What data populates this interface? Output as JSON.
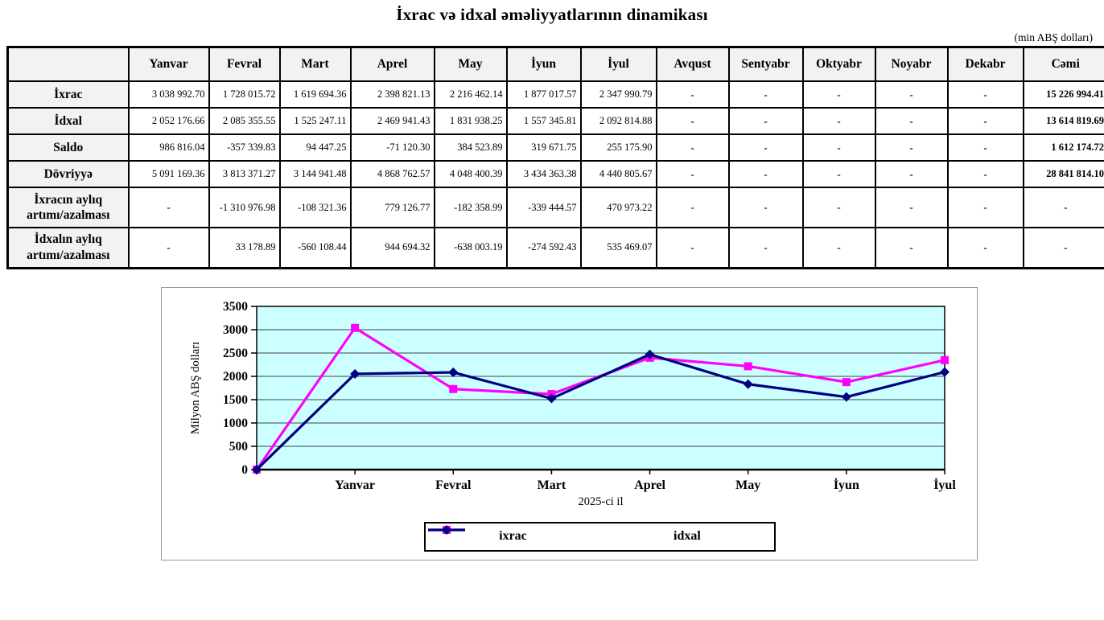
{
  "page": {
    "title": "İxrac və idxal əməliyyatlarının dinamikası",
    "unit_note": "(min ABŞ dolları)"
  },
  "table": {
    "columns": [
      "",
      "Yanvar",
      "Fevral",
      "Mart",
      "Aprel",
      "May",
      "İyun",
      "İyul",
      "Avqust",
      "Sentyabr",
      "Oktyabr",
      "Noyabr",
      "Dekabr",
      "Cəmi"
    ],
    "rows": [
      {
        "label": "İxrac",
        "tall": false,
        "values": [
          "3 038 992.70",
          "1 728 015.72",
          "1 619 694.36",
          "2 398 821.13",
          "2 216 462.14",
          "1 877 017.57",
          "2 347 990.79",
          "-",
          "-",
          "-",
          "-",
          "-",
          "15 226 994.41"
        ]
      },
      {
        "label": "İdxal",
        "tall": false,
        "values": [
          "2 052 176.66",
          "2 085 355.55",
          "1 525 247.11",
          "2 469 941.43",
          "1 831 938.25",
          "1 557 345.81",
          "2 092 814.88",
          "-",
          "-",
          "-",
          "-",
          "-",
          "13 614 819.69"
        ]
      },
      {
        "label": "Saldo",
        "tall": false,
        "values": [
          "986 816.04",
          "-357 339.83",
          "94 447.25",
          "-71 120.30",
          "384 523.89",
          "319 671.75",
          "255 175.90",
          "-",
          "-",
          "-",
          "-",
          "-",
          "1 612 174.72"
        ]
      },
      {
        "label": "Dövriyyə",
        "tall": false,
        "values": [
          "5 091 169.36",
          "3 813 371.27",
          "3 144 941.48",
          "4 868 762.57",
          "4 048 400.39",
          "3 434 363.38",
          "4 440 805.67",
          "-",
          "-",
          "-",
          "-",
          "-",
          "28 841 814.10"
        ]
      },
      {
        "label": "İxracın aylıq artımı/azalması",
        "tall": true,
        "values": [
          "-",
          "-1 310 976.98",
          "-108 321.36",
          "779 126.77",
          "-182 358.99",
          "-339 444.57",
          "470 973.22",
          "-",
          "-",
          "-",
          "-",
          "-",
          "-"
        ]
      },
      {
        "label": "İdxalın aylıq artımı/azalması",
        "tall": true,
        "values": [
          "-",
          "33 178.89",
          "-560 108.44",
          "944 694.32",
          "-638 003.19",
          "-274 592.43",
          "535 469.07",
          "-",
          "-",
          "-",
          "-",
          "-",
          "-"
        ]
      }
    ]
  },
  "chart_data": {
    "type": "line",
    "categories": [
      "",
      "Yanvar",
      "Fevral",
      "Mart",
      "Aprel",
      "May",
      "İyun",
      "İyul"
    ],
    "series": [
      {
        "name": "ixrac",
        "color": "#FF00FF",
        "marker": "square",
        "values": [
          0,
          3038.99,
          1728.02,
          1619.69,
          2398.82,
          2216.46,
          1877.02,
          2347.99
        ]
      },
      {
        "name": "idxal",
        "color": "#000080",
        "marker": "diamond",
        "values": [
          0,
          2052.18,
          2085.36,
          1525.25,
          2469.94,
          1831.94,
          1557.35,
          2092.81
        ]
      }
    ],
    "ylabel": "Milyon ABŞ dolları",
    "xlabel": "2025-ci il",
    "ylim": [
      0,
      3500
    ],
    "ytick_step": 500,
    "plot_bg": "#CCFFFF",
    "grid_color": "#404040",
    "legend_position": "bottom",
    "legend_entries": [
      "ixrac",
      "idxal"
    ]
  }
}
